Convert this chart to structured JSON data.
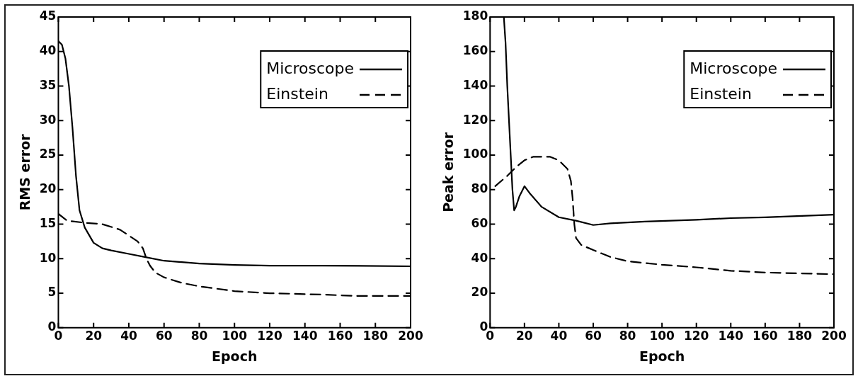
{
  "chart_data": [
    {
      "type": "line",
      "xlabel": "Epoch",
      "ylabel": "RMS error",
      "xlim": [
        0,
        200
      ],
      "ylim": [
        0,
        45
      ],
      "xticks": [
        0,
        20,
        40,
        60,
        80,
        100,
        120,
        140,
        160,
        180,
        200
      ],
      "yticks": [
        0,
        5,
        10,
        15,
        20,
        25,
        30,
        35,
        40,
        45
      ],
      "grid": false,
      "legend": "top right",
      "marker": "none",
      "series": [
        {
          "name": "Microscope",
          "color": "#000000",
          "line_style": "solid",
          "x": [
            0,
            2,
            4,
            6,
            8,
            10,
            12,
            15,
            20,
            25,
            30,
            40,
            50,
            60,
            80,
            100,
            120,
            150,
            200
          ],
          "values": [
            41.5,
            41,
            39,
            35,
            29,
            22,
            17,
            14.5,
            12.3,
            11.5,
            11.2,
            10.7,
            10.2,
            9.7,
            9.3,
            9.1,
            9,
            9,
            8.9
          ]
        },
        {
          "name": "Einstein",
          "color": "#000000",
          "line_style": "dashed",
          "x": [
            0,
            5,
            15,
            25,
            35,
            45,
            48,
            50,
            52,
            55,
            60,
            70,
            80,
            100,
            120,
            150,
            170,
            200
          ],
          "values": [
            16.5,
            15.5,
            15.2,
            15,
            14.2,
            12.5,
            11.5,
            10,
            9,
            8,
            7.3,
            6.5,
            6,
            5.3,
            5,
            4.8,
            4.6,
            4.6
          ]
        }
      ]
    },
    {
      "type": "line",
      "xlabel": "Epoch",
      "ylabel": "Peak error",
      "xlim": [
        0,
        200
      ],
      "ylim": [
        0,
        180
      ],
      "xticks": [
        0,
        20,
        40,
        60,
        80,
        100,
        120,
        140,
        160,
        180,
        200
      ],
      "yticks": [
        0,
        20,
        40,
        60,
        80,
        100,
        120,
        140,
        160,
        180
      ],
      "grid": false,
      "legend": "top right",
      "marker": "none",
      "series": [
        {
          "name": "Microscope",
          "color": "#000000",
          "line_style": "solid",
          "x": [
            8,
            9,
            10,
            11,
            12,
            13,
            14,
            15,
            17,
            20,
            23,
            30,
            40,
            50,
            60,
            70,
            90,
            120,
            140,
            160,
            200
          ],
          "values": [
            180,
            165,
            140,
            120,
            100,
            80,
            68,
            70,
            76,
            82,
            78,
            70,
            64,
            62,
            59.5,
            60.5,
            61.5,
            62.5,
            63.5,
            64,
            65.5
          ]
        },
        {
          "name": "Einstein",
          "color": "#000000",
          "line_style": "dashed",
          "x": [
            3,
            10,
            15,
            20,
            25,
            35,
            40,
            45,
            47,
            48,
            49,
            50,
            53,
            60,
            70,
            80,
            100,
            120,
            140,
            160,
            180,
            200
          ],
          "values": [
            82,
            88,
            93,
            97,
            99,
            99,
            97,
            92,
            85,
            75,
            60,
            52,
            48,
            45,
            41,
            38.5,
            36.5,
            35,
            33,
            32,
            31.5,
            31
          ]
        }
      ]
    }
  ]
}
